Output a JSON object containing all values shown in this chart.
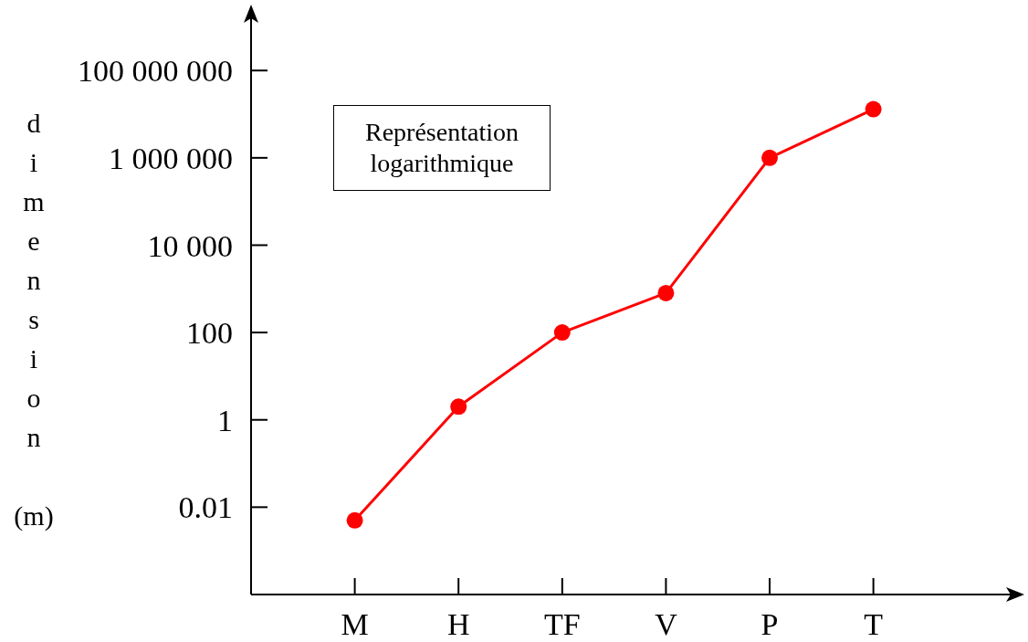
{
  "chart_data": {
    "type": "line",
    "ylabel": "dimension (m)",
    "annotations": [
      "Représentation logarithmique"
    ],
    "categories": [
      "M",
      "H",
      "TF",
      "V",
      "P",
      "T"
    ],
    "values": [
      0.005,
      2,
      100,
      800,
      1000000,
      13000000
    ],
    "color": "#ff0000",
    "log": true,
    "ylim": [
      0.0001,
      2000000000
    ],
    "yticks": [
      {
        "value": 0.01,
        "label": "0.01"
      },
      1,
      100,
      {
        "value": 10000,
        "label": "10 000"
      },
      {
        "value": 1000000,
        "label": "1 000 000"
      },
      {
        "value": 100000000,
        "label": "100 000 000"
      }
    ],
    "grid": false,
    "legend": false,
    "marker": "circle",
    "line_style": "solid"
  }
}
